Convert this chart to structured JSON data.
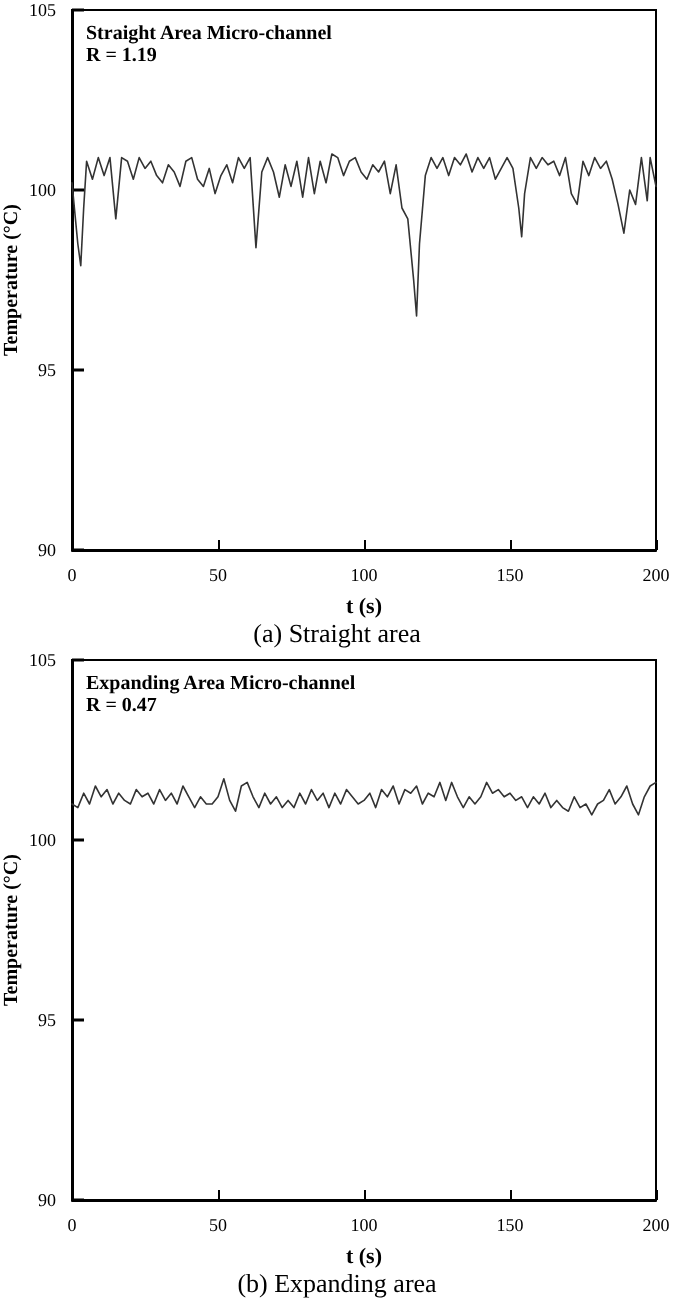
{
  "chart_data": [
    {
      "type": "line",
      "title": "Straight Area Micro-channel",
      "subtitle": "R = 1.19",
      "xlabel": "t (s)",
      "ylabel": "Temperature (°C)",
      "annotations": [
        "(a) Straight area"
      ],
      "xlim": [
        0,
        200
      ],
      "xticks": [
        0,
        50,
        100,
        150,
        200
      ],
      "ylim": [
        90,
        105
      ],
      "yticks": [
        90,
        95,
        100,
        105
      ],
      "grid": false,
      "marker": "none",
      "line_style": "solid",
      "series": [
        {
          "color": "#333333",
          "x": [
            0,
            2,
            3,
            4,
            5,
            7,
            9,
            11,
            13,
            15,
            17,
            19,
            21,
            23,
            25,
            27,
            29,
            31,
            33,
            35,
            37,
            39,
            41,
            43,
            45,
            47,
            49,
            51,
            53,
            55,
            57,
            59,
            61,
            63,
            65,
            67,
            69,
            71,
            73,
            75,
            77,
            79,
            81,
            83,
            85,
            87,
            89,
            91,
            93,
            95,
            97,
            99,
            101,
            103,
            105,
            107,
            109,
            111,
            113,
            115,
            117,
            118,
            119,
            121,
            123,
            125,
            127,
            129,
            131,
            133,
            135,
            137,
            139,
            141,
            143,
            145,
            147,
            149,
            151,
            153,
            154,
            155,
            157,
            159,
            161,
            163,
            165,
            167,
            169,
            171,
            173,
            175,
            177,
            179,
            181,
            183,
            185,
            187,
            189,
            191,
            193,
            195,
            197,
            198,
            200
          ],
          "values": [
            100.2,
            98.5,
            97.9,
            99.5,
            100.8,
            100.3,
            100.9,
            100.4,
            100.9,
            99.2,
            100.9,
            100.8,
            100.3,
            100.9,
            100.6,
            100.8,
            100.4,
            100.2,
            100.7,
            100.5,
            100.1,
            100.8,
            100.9,
            100.3,
            100.1,
            100.6,
            99.9,
            100.4,
            100.7,
            100.2,
            100.9,
            100.6,
            100.9,
            98.4,
            100.5,
            100.9,
            100.5,
            99.8,
            100.7,
            100.1,
            100.8,
            99.8,
            100.9,
            99.9,
            100.8,
            100.2,
            101.0,
            100.9,
            100.4,
            100.8,
            100.9,
            100.5,
            100.3,
            100.7,
            100.5,
            100.8,
            99.9,
            100.7,
            99.5,
            99.2,
            97.5,
            96.5,
            98.5,
            100.4,
            100.9,
            100.6,
            100.9,
            100.4,
            100.9,
            100.7,
            101.0,
            100.5,
            100.9,
            100.6,
            100.9,
            100.3,
            100.6,
            100.9,
            100.6,
            99.5,
            98.7,
            99.9,
            100.9,
            100.6,
            100.9,
            100.7,
            100.8,
            100.4,
            100.9,
            99.9,
            99.6,
            100.8,
            100.4,
            100.9,
            100.6,
            100.8,
            100.3,
            99.6,
            98.8,
            100.0,
            99.6,
            100.9,
            99.7,
            100.9,
            100.1
          ]
        }
      ]
    },
    {
      "type": "line",
      "title": "Expanding Area Micro-channel",
      "subtitle": "R = 0.47",
      "xlabel": "t (s)",
      "ylabel": "Temperature (°C)",
      "annotations": [
        "(b) Expanding area"
      ],
      "xlim": [
        0,
        200
      ],
      "xticks": [
        0,
        50,
        100,
        150,
        200
      ],
      "ylim": [
        90,
        105
      ],
      "yticks": [
        90,
        95,
        100,
        105
      ],
      "grid": false,
      "marker": "none",
      "line_style": "solid",
      "series": [
        {
          "color": "#333333",
          "x": [
            0,
            2,
            4,
            6,
            8,
            10,
            12,
            14,
            16,
            18,
            20,
            22,
            24,
            26,
            28,
            30,
            32,
            34,
            36,
            38,
            40,
            42,
            44,
            46,
            48,
            50,
            52,
            54,
            56,
            58,
            60,
            62,
            64,
            66,
            68,
            70,
            72,
            74,
            76,
            78,
            80,
            82,
            84,
            86,
            88,
            90,
            92,
            94,
            96,
            98,
            100,
            102,
            104,
            106,
            108,
            110,
            112,
            114,
            116,
            118,
            120,
            122,
            124,
            126,
            128,
            130,
            132,
            134,
            136,
            138,
            140,
            142,
            144,
            146,
            148,
            150,
            152,
            154,
            156,
            158,
            160,
            162,
            164,
            166,
            168,
            170,
            172,
            174,
            176,
            178,
            180,
            182,
            184,
            186,
            188,
            190,
            192,
            194,
            196,
            198,
            200
          ],
          "values": [
            101.0,
            100.9,
            101.3,
            101.0,
            101.5,
            101.2,
            101.4,
            101.0,
            101.3,
            101.1,
            101.0,
            101.4,
            101.2,
            101.3,
            101.0,
            101.4,
            101.1,
            101.3,
            101.0,
            101.5,
            101.2,
            100.9,
            101.2,
            101.0,
            101.0,
            101.2,
            101.7,
            101.1,
            100.8,
            101.5,
            101.6,
            101.2,
            100.9,
            101.3,
            101.0,
            101.2,
            100.9,
            101.1,
            100.9,
            101.3,
            101.0,
            101.4,
            101.1,
            101.3,
            100.9,
            101.3,
            101.0,
            101.4,
            101.2,
            101.0,
            101.1,
            101.3,
            100.9,
            101.4,
            101.2,
            101.5,
            101.0,
            101.4,
            101.3,
            101.5,
            101.0,
            101.3,
            101.2,
            101.6,
            101.1,
            101.6,
            101.2,
            100.9,
            101.2,
            101.0,
            101.2,
            101.6,
            101.3,
            101.4,
            101.2,
            101.3,
            101.1,
            101.2,
            100.9,
            101.2,
            101.0,
            101.3,
            100.9,
            101.1,
            100.9,
            100.8,
            101.2,
            100.9,
            101.0,
            100.7,
            101.0,
            101.1,
            101.4,
            101.0,
            101.2,
            101.5,
            101.0,
            100.7,
            101.2,
            101.5,
            101.6
          ]
        }
      ]
    }
  ]
}
